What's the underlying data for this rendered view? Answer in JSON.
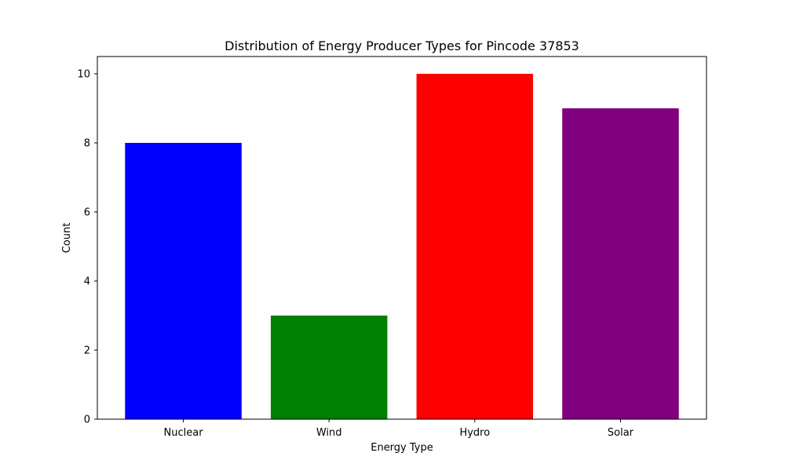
{
  "chart_data": {
    "type": "bar",
    "title": "Distribution of Energy Producer Types for Pincode 37853",
    "xlabel": "Energy Type",
    "ylabel": "Count",
    "categories": [
      "Nuclear",
      "Wind",
      "Hydro",
      "Solar"
    ],
    "values": [
      8,
      3,
      10,
      9
    ],
    "colors": [
      "#0000ff",
      "#008000",
      "#ff0000",
      "#800080"
    ],
    "ylim": [
      0,
      10.5
    ],
    "yticks": [
      0,
      2,
      4,
      6,
      8,
      10
    ],
    "grid": false,
    "legend": "none"
  }
}
